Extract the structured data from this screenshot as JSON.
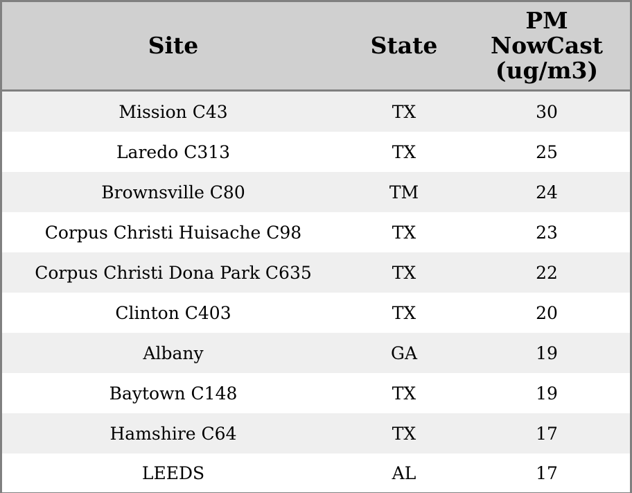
{
  "chart_data": {
    "type": "table",
    "columns": [
      "Site",
      "State",
      "PM NowCast (ug/m3)"
    ],
    "rows": [
      {
        "site": "Mission C43",
        "state": "TX",
        "pm": 30
      },
      {
        "site": "Laredo C313",
        "state": "TX",
        "pm": 25
      },
      {
        "site": "Brownsville C80",
        "state": "TM",
        "pm": 24
      },
      {
        "site": "Corpus Christi Huisache C98",
        "state": "TX",
        "pm": 23
      },
      {
        "site": "Corpus Christi Dona Park C635",
        "state": "TX",
        "pm": 22
      },
      {
        "site": "Clinton C403",
        "state": "TX",
        "pm": 20
      },
      {
        "site": "Albany",
        "state": "GA",
        "pm": 19
      },
      {
        "site": "Baytown C148",
        "state": "TX",
        "pm": 19
      },
      {
        "site": "Hamshire C64",
        "state": "TX",
        "pm": 17
      },
      {
        "site": "LEEDS",
        "state": "AL",
        "pm": 17
      }
    ]
  },
  "header": {
    "site_label": "Site",
    "state_label": "State",
    "pm_label_lines": [
      "PM",
      "NowCast",
      "(ug/m3)"
    ]
  },
  "colors": {
    "header_bg": "#d0d0d0",
    "row_alt_bg": "#efefef",
    "row_bg": "#ffffff",
    "border": "#808080"
  }
}
